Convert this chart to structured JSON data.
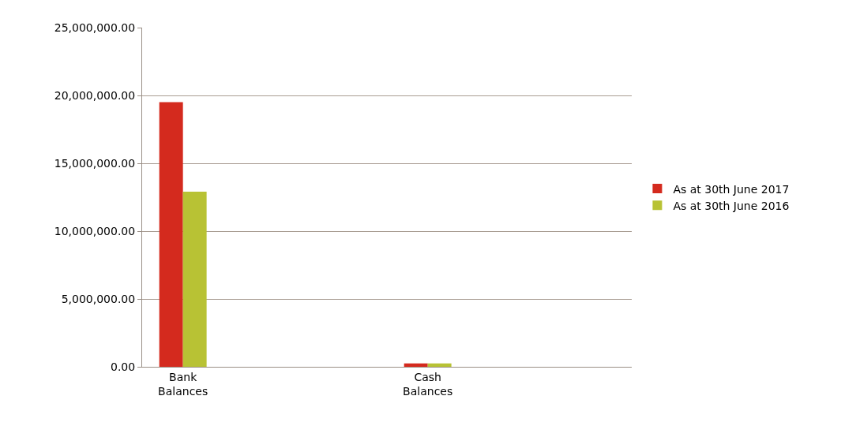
{
  "chart_data": {
    "type": "bar",
    "categories": [
      "Bank Balances",
      null,
      null,
      "Cash Balances",
      null,
      null
    ],
    "series": [
      {
        "name": "As at 30th June 2017",
        "color": "#d42a1e",
        "values": [
          19500000,
          null,
          null,
          250000,
          null,
          null
        ]
      },
      {
        "name": "As at 30th June 2016",
        "color": "#b8c234",
        "values": [
          12900000,
          null,
          null,
          250000,
          null,
          null
        ]
      }
    ],
    "ylim": [
      0,
      25000000
    ],
    "yticks": [
      {
        "value": 0,
        "label": "0.00"
      },
      {
        "value": 5000000,
        "label": "5,000,000.00"
      },
      {
        "value": 10000000,
        "label": "10,000,000.00"
      },
      {
        "value": 15000000,
        "label": "15,000,000.00"
      },
      {
        "value": 20000000,
        "label": "20,000,000.00"
      },
      {
        "value": 25000000,
        "label": "25,000,000.00"
      }
    ],
    "grid": "y",
    "legend": "right"
  }
}
